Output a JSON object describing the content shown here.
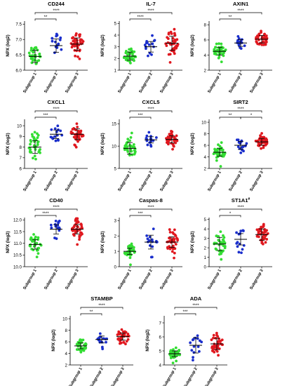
{
  "colors": {
    "subgroup_1": "#33dd33",
    "subgroup_2": "#1a2ecc",
    "subgroup_3": "#e0181f",
    "axis": "#000000"
  },
  "chart_data": [
    {
      "type": "scatter",
      "title": "CD244",
      "title_superscript": "",
      "ylabel": "NPX (log2)",
      "categories": [
        "Subgroup 1",
        "Subgroup 2",
        "Subgroup 3"
      ],
      "yticks": [
        "6.0",
        "6.5",
        "7.0",
        "7.5"
      ],
      "ylim": [
        6.0,
        7.6
      ],
      "series": [
        {
          "name": "Subgroup 1",
          "mean": 6.45,
          "sd": 0.2,
          "n": 35
        },
        {
          "name": "Subgroup 2",
          "mean": 6.8,
          "sd": 0.22,
          "n": 15
        },
        {
          "name": "Subgroup 3",
          "mean": 6.85,
          "sd": 0.2,
          "n": 40
        }
      ],
      "annotations": [
        {
          "from": 0,
          "to": 1,
          "label": "**"
        },
        {
          "from": 0,
          "to": 2,
          "label": "****"
        }
      ]
    },
    {
      "type": "scatter",
      "title": "IL-7",
      "title_superscript": "",
      "ylabel": "NPX (log2)",
      "categories": [
        "Subgroup 1",
        "Subgroup 2",
        "Subgroup 3"
      ],
      "yticks": [
        "1",
        "2",
        "3",
        "4",
        "5"
      ],
      "ylim": [
        1,
        5.2
      ],
      "series": [
        {
          "name": "Subgroup 1",
          "mean": 2.2,
          "sd": 0.35,
          "n": 35
        },
        {
          "name": "Subgroup 2",
          "mean": 3.0,
          "sd": 0.45,
          "n": 15
        },
        {
          "name": "Subgroup 3",
          "mean": 3.3,
          "sd": 0.6,
          "n": 40
        }
      ],
      "annotations": [
        {
          "from": 0,
          "to": 1,
          "label": "****"
        },
        {
          "from": 0,
          "to": 2,
          "label": "****"
        }
      ]
    },
    {
      "type": "scatter",
      "title": "AXIN1",
      "title_superscript": "",
      "ylabel": "NPX (log2)",
      "categories": [
        "Subgroup 1",
        "Subgroup 2",
        "Subgroup 3"
      ],
      "yticks": [
        "2",
        "4",
        "6",
        "8"
      ],
      "ylim": [
        2,
        8.5
      ],
      "series": [
        {
          "name": "Subgroup 1",
          "mean": 4.5,
          "sd": 0.5,
          "n": 35
        },
        {
          "name": "Subgroup 2",
          "mean": 5.6,
          "sd": 0.45,
          "n": 15
        },
        {
          "name": "Subgroup 3",
          "mean": 6.1,
          "sd": 0.5,
          "n": 40
        }
      ],
      "annotations": [
        {
          "from": 0,
          "to": 1,
          "label": "**"
        },
        {
          "from": 0,
          "to": 2,
          "label": "****"
        }
      ]
    },
    {
      "type": "scatter",
      "title": "CXCL1",
      "title_superscript": "",
      "ylabel": "NPX (log2)",
      "categories": [
        "Subgroup 1",
        "Subgroup 2",
        "Subgroup 3"
      ],
      "yticks": [
        "6",
        "7",
        "8",
        "9",
        "10"
      ],
      "ylim": [
        6,
        10.6
      ],
      "series": [
        {
          "name": "Subgroup 1",
          "mean": 8.0,
          "sd": 0.6,
          "n": 35
        },
        {
          "name": "Subgroup 2",
          "mean": 9.2,
          "sd": 0.4,
          "n": 15
        },
        {
          "name": "Subgroup 3",
          "mean": 9.2,
          "sd": 0.5,
          "n": 40
        }
      ],
      "annotations": [
        {
          "from": 0,
          "to": 1,
          "label": "***"
        },
        {
          "from": 0,
          "to": 2,
          "label": "****"
        }
      ]
    },
    {
      "type": "scatter",
      "title": "CXCL5",
      "title_superscript": "",
      "ylabel": "NPX (log2)",
      "categories": [
        "Subgroup 1",
        "Subgroup 2",
        "Subgroup 3"
      ],
      "yticks": [
        "5",
        "10",
        "15"
      ],
      "ylim": [
        5,
        16
      ],
      "series": [
        {
          "name": "Subgroup 1",
          "mean": 9.5,
          "sd": 1.3,
          "n": 35
        },
        {
          "name": "Subgroup 2",
          "mean": 11.4,
          "sd": 0.7,
          "n": 15
        },
        {
          "name": "Subgroup 3",
          "mean": 11.5,
          "sd": 0.8,
          "n": 40
        }
      ],
      "annotations": [
        {
          "from": 0,
          "to": 1,
          "label": "***"
        },
        {
          "from": 0,
          "to": 2,
          "label": "****"
        }
      ]
    },
    {
      "type": "scatter",
      "title": "SIRT2",
      "title_superscript": "",
      "ylabel": "NPX (log2)",
      "categories": [
        "Subgroup 1",
        "Subgroup 2",
        "Subgroup 3"
      ],
      "yticks": [
        "2",
        "4",
        "6",
        "8",
        "10"
      ],
      "ylim": [
        2,
        10.5
      ],
      "series": [
        {
          "name": "Subgroup 1",
          "mean": 4.8,
          "sd": 0.7,
          "n": 35
        },
        {
          "name": "Subgroup 2",
          "mean": 6.0,
          "sd": 0.7,
          "n": 15
        },
        {
          "name": "Subgroup 3",
          "mean": 6.6,
          "sd": 0.6,
          "n": 40
        }
      ],
      "annotations": [
        {
          "from": 0,
          "to": 1,
          "label": "**"
        },
        {
          "from": 1,
          "to": 2,
          "label": "*"
        },
        {
          "from": 0,
          "to": 2,
          "label": "****"
        }
      ]
    },
    {
      "type": "scatter",
      "title": "CD40",
      "title_superscript": "",
      "ylabel": "NPX (log2)",
      "categories": [
        "Subgroup 1",
        "Subgroup 2",
        "Subgroup 3"
      ],
      "yticks": [
        "10.0",
        "10.5",
        "11.0",
        "11.5",
        "12.0"
      ],
      "ylim": [
        10.0,
        12.1
      ],
      "series": [
        {
          "name": "Subgroup 1",
          "mean": 10.95,
          "sd": 0.2,
          "n": 35
        },
        {
          "name": "Subgroup 2",
          "mean": 11.6,
          "sd": 0.2,
          "n": 15
        },
        {
          "name": "Subgroup 3",
          "mean": 11.6,
          "sd": 0.2,
          "n": 40
        }
      ],
      "annotations": [
        {
          "from": 0,
          "to": 1,
          "label": "****"
        },
        {
          "from": 0,
          "to": 2,
          "label": "****"
        }
      ]
    },
    {
      "type": "scatter",
      "title": "Caspas-8",
      "title_superscript": "",
      "ylabel": "NPX (log2)",
      "categories": [
        "Subgroup 1",
        "Subgroup 2",
        "Subgroup 3"
      ],
      "yticks": [
        "0",
        "1",
        "2",
        "3"
      ],
      "ylim": [
        0,
        3.2
      ],
      "series": [
        {
          "name": "Subgroup 1",
          "mean": 1.0,
          "sd": 0.2,
          "n": 35
        },
        {
          "name": "Subgroup 2",
          "mean": 1.6,
          "sd": 0.45,
          "n": 15
        },
        {
          "name": "Subgroup 3",
          "mean": 1.6,
          "sd": 0.35,
          "n": 40
        }
      ],
      "annotations": [
        {
          "from": 0,
          "to": 1,
          "label": "***"
        },
        {
          "from": 0,
          "to": 2,
          "label": "****"
        }
      ]
    },
    {
      "type": "scatter",
      "title": "ST1A1",
      "title_superscript": "#",
      "ylabel": "NPX (log2)",
      "categories": [
        "Subgroup 1",
        "Subgroup 2",
        "Subgroup 3"
      ],
      "yticks": [
        "0",
        "1",
        "2",
        "3",
        "4",
        "5"
      ],
      "ylim": [
        0,
        5.2
      ],
      "series": [
        {
          "name": "Subgroup 1",
          "mean": 2.4,
          "sd": 0.7,
          "n": 35
        },
        {
          "name": "Subgroup 2",
          "mean": 2.9,
          "sd": 0.6,
          "n": 15
        },
        {
          "name": "Subgroup 3",
          "mean": 3.4,
          "sd": 0.6,
          "n": 40
        }
      ],
      "annotations": [
        {
          "from": 0,
          "to": 1,
          "label": "*"
        },
        {
          "from": 0,
          "to": 2,
          "label": "****"
        }
      ]
    },
    {
      "type": "scatter",
      "title": "STAMBP",
      "title_superscript": "",
      "ylabel": "NPX (log2)",
      "categories": [
        "Subgroup 1",
        "Subgroup 2",
        "Subgroup 3"
      ],
      "yticks": [
        "2",
        "4",
        "6",
        "8",
        "10"
      ],
      "ylim": [
        2,
        10.5
      ],
      "series": [
        {
          "name": "Subgroup 1",
          "mean": 5.3,
          "sd": 0.5,
          "n": 35
        },
        {
          "name": "Subgroup 2",
          "mean": 6.4,
          "sd": 0.6,
          "n": 15
        },
        {
          "name": "Subgroup 3",
          "mean": 6.9,
          "sd": 0.6,
          "n": 40
        }
      ],
      "annotations": [
        {
          "from": 0,
          "to": 1,
          "label": "**"
        },
        {
          "from": 0,
          "to": 2,
          "label": "****"
        }
      ]
    },
    {
      "type": "scatter",
      "title": "ADA",
      "title_superscript": "",
      "ylabel": "NPX (log2)",
      "categories": [
        "Subgroup 1",
        "Subgroup 2",
        "Subgroup 3"
      ],
      "yticks": [
        "4",
        "5",
        "6",
        "7"
      ],
      "ylim": [
        4,
        7.5
      ],
      "series": [
        {
          "name": "Subgroup 1",
          "mean": 4.8,
          "sd": 0.2,
          "n": 35
        },
        {
          "name": "Subgroup 2",
          "mean": 5.4,
          "sd": 0.55,
          "n": 15
        },
        {
          "name": "Subgroup 3",
          "mean": 5.5,
          "sd": 0.4,
          "n": 40
        }
      ],
      "annotations": [
        {
          "from": 0,
          "to": 1,
          "label": "***"
        },
        {
          "from": 0,
          "to": 2,
          "label": "****"
        }
      ]
    }
  ]
}
